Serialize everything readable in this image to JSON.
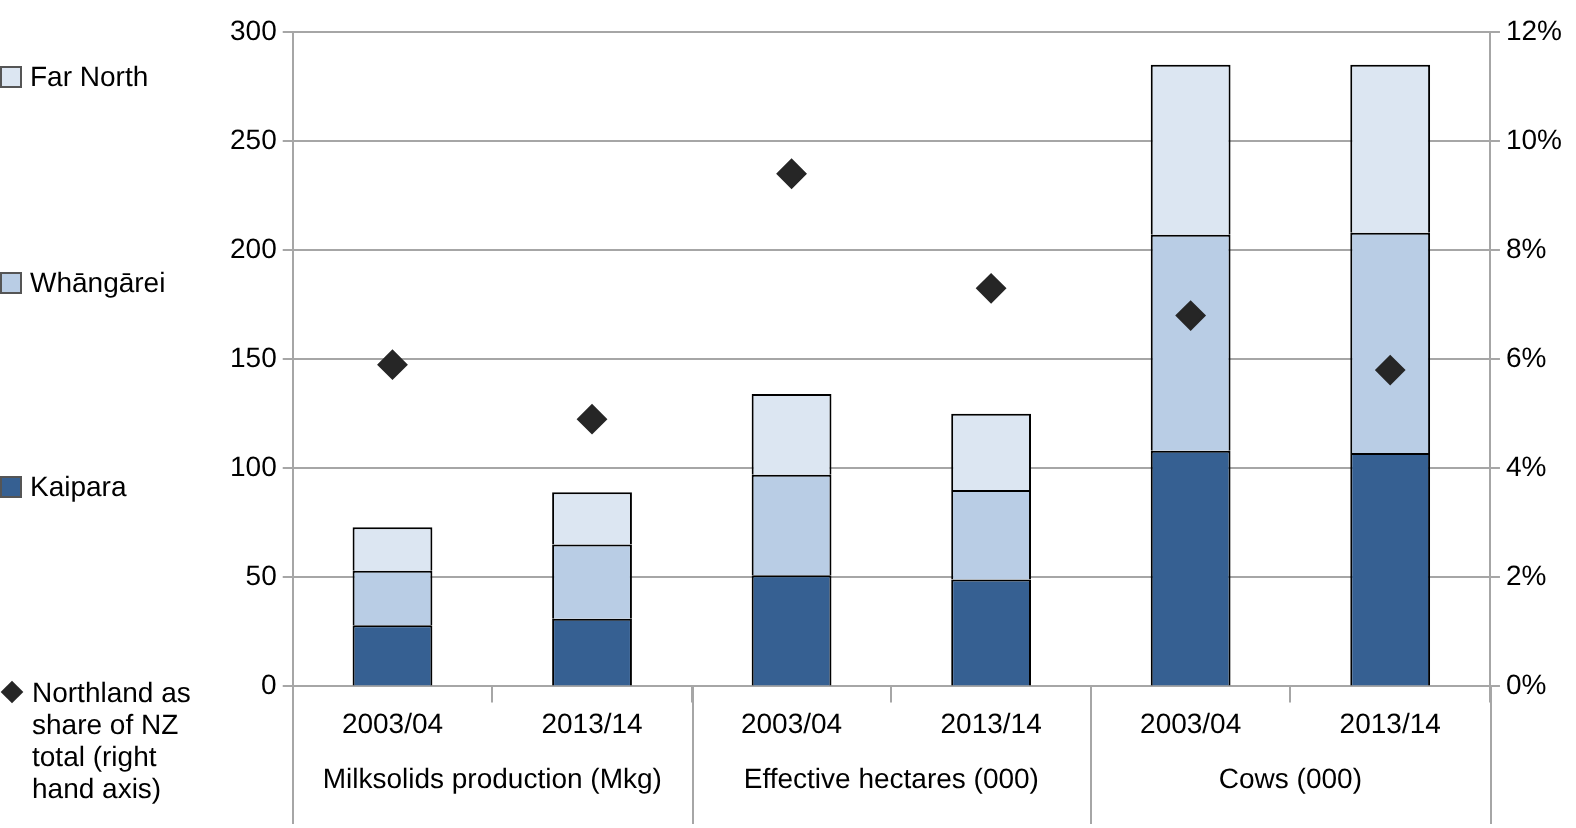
{
  "chart_data": {
    "type": "bar",
    "stacked": true,
    "categories": [
      "2003/04",
      "2013/14",
      "2003/04",
      "2013/14",
      "2003/04",
      "2013/14"
    ],
    "annotations": [
      "Milksolids production (Mkg)",
      "Effective hectares (000)",
      "Cows (000)"
    ],
    "series": [
      {
        "name": "Kaipara",
        "color": "#366092",
        "values": [
          28,
          31,
          51,
          49,
          108,
          107
        ]
      },
      {
        "name": "Whāngārei",
        "color": "#b9cde5",
        "values": [
          25,
          34,
          46,
          41,
          99,
          101
        ]
      },
      {
        "name": "Far North",
        "color": "#dce6f2",
        "values": [
          20,
          24,
          37,
          35,
          78,
          77
        ]
      },
      {
        "name": "Northland as share of NZ total (right hand axis)",
        "type": "scatter",
        "axis": "y2",
        "marker": "diamond",
        "color": "#262626",
        "values": [
          5.9,
          4.9,
          9.4,
          7.3,
          6.8,
          5.8
        ]
      }
    ],
    "ylim": [
      0,
      300
    ],
    "yticks": [
      0,
      50,
      100,
      150,
      200,
      250,
      300
    ],
    "y2lim": [
      0,
      12
    ],
    "y2ticks": [
      {
        "value": 0,
        "label": "0%"
      },
      {
        "value": 2,
        "label": "2%"
      },
      {
        "value": 4,
        "label": "4%"
      },
      {
        "value": 6,
        "label": "6%"
      },
      {
        "value": 8,
        "label": "8%"
      },
      {
        "value": 10,
        "label": "10%"
      },
      {
        "value": 12,
        "label": "12%"
      }
    ],
    "grid": "y",
    "legend": "left"
  }
}
